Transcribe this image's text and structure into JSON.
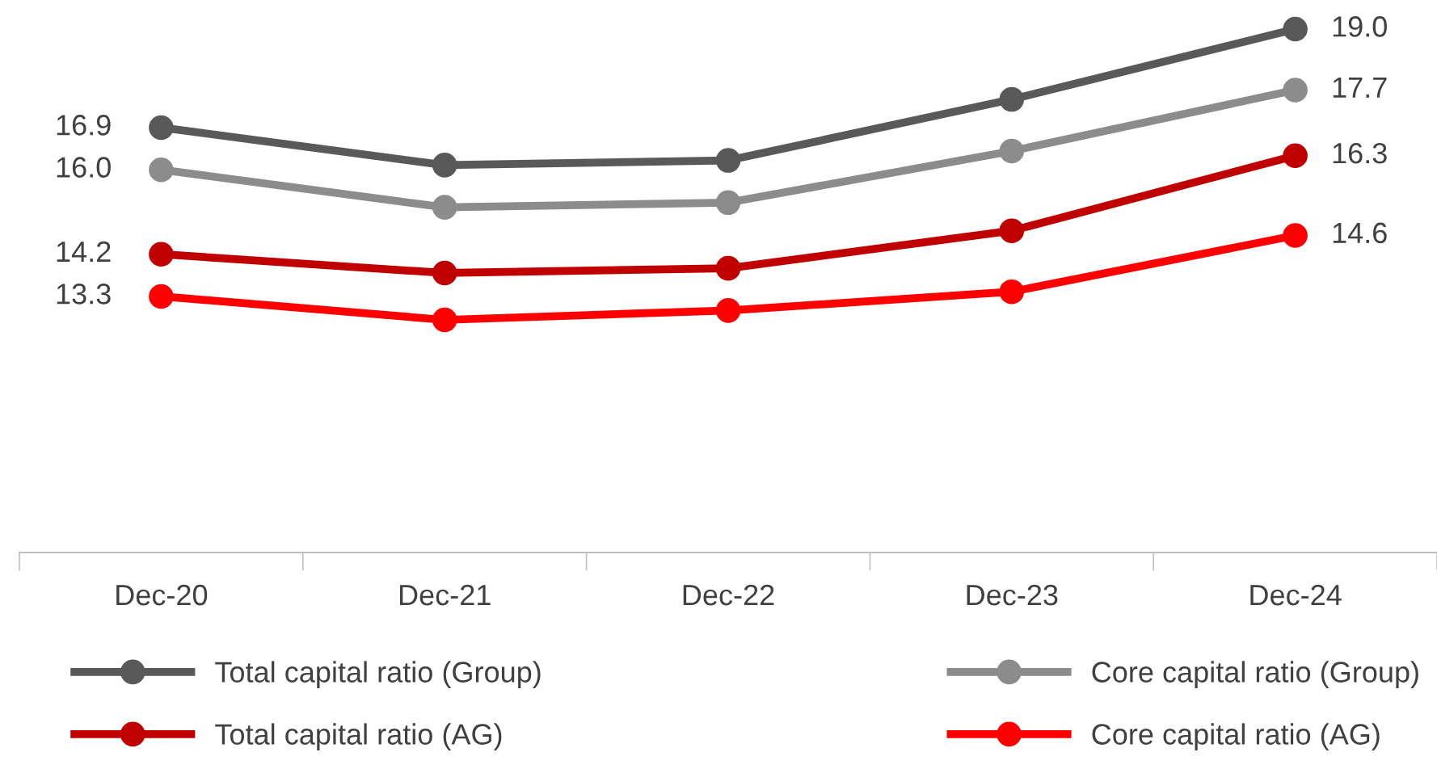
{
  "chart_data": {
    "type": "line",
    "categories": [
      "Dec-20",
      "Dec-21",
      "Dec-22",
      "Dec-23",
      "Dec-24"
    ],
    "tick_labels": "x",
    "grid": false,
    "legend": "bottom",
    "marker": "circle",
    "line_style": "solid",
    "series": [
      {
        "name": "Total capital ratio (Group)",
        "color": "#595959",
        "values": [
          16.9,
          16.1,
          16.2,
          17.5,
          19.0
        ],
        "value_labels": [
          "16.9",
          null,
          null,
          null,
          "19.0"
        ]
      },
      {
        "name": "Core capital ratio (Group)",
        "color": "#8c8c8c",
        "values": [
          16.0,
          15.2,
          15.3,
          16.4,
          17.7
        ],
        "value_labels": [
          "16.0",
          null,
          null,
          null,
          "17.7"
        ]
      },
      {
        "name": "Total capital ratio (AG)",
        "color": "#c00000",
        "values": [
          14.2,
          13.8,
          13.9,
          14.7,
          16.3
        ],
        "value_labels": [
          "14.2",
          null,
          null,
          null,
          "16.3"
        ]
      },
      {
        "name": "Core capital ratio (AG)",
        "color": "#ff0000",
        "values": [
          13.3,
          12.8,
          13.0,
          13.4,
          14.6
        ],
        "value_labels": [
          "13.3",
          null,
          null,
          null,
          "14.6"
        ]
      }
    ]
  }
}
